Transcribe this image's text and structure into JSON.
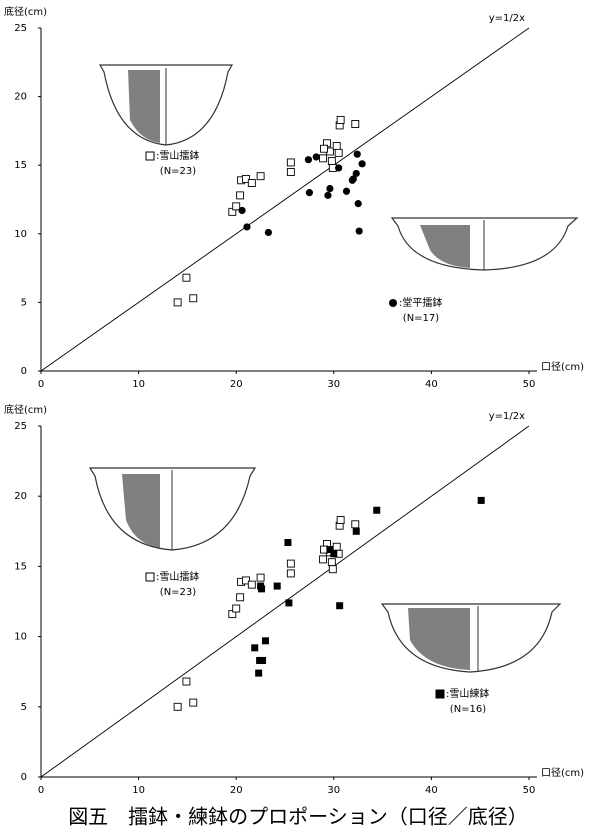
{
  "chart_data": [
    {
      "type": "scatter",
      "y_label": "底径(cm)",
      "x_label": "口径(cm)",
      "xlim": [
        0,
        50
      ],
      "ylim": [
        0,
        25
      ],
      "xticks": [
        0,
        10,
        20,
        30,
        40,
        50
      ],
      "yticks": [
        0,
        5,
        10,
        15,
        20,
        25
      ],
      "reference_line": {
        "label": "y=1/2x",
        "slope": 0.5
      },
      "series": [
        {
          "name": ":雪山擂鉢",
          "count_label": "(N=23)",
          "marker": "square-open",
          "color": "#000000",
          "x": [
            14.0,
            14.9,
            15.6,
            19.6,
            20.0,
            20.4,
            20.5,
            21.0,
            21.6,
            22.5,
            25.6,
            25.6,
            28.9,
            29.3,
            29.6,
            29.8,
            29.9,
            30.3,
            30.5,
            30.6,
            30.7,
            32.2,
            29.0
          ],
          "values": [
            5.0,
            6.8,
            5.3,
            11.6,
            12.0,
            12.8,
            13.9,
            14.0,
            13.7,
            14.2,
            15.2,
            14.5,
            15.5,
            16.6,
            16.0,
            15.3,
            14.8,
            16.4,
            15.9,
            17.9,
            18.3,
            18.0,
            16.2
          ]
        },
        {
          "name": ":堂平擂鉢",
          "count_label": "(N=17)",
          "marker": "circle",
          "color": "#000000",
          "x": [
            20.6,
            21.1,
            23.3,
            27.4,
            27.5,
            28.2,
            29.4,
            29.6,
            30.5,
            31.3,
            31.9,
            32.3,
            32.4,
            32.5,
            32.6,
            32.9,
            32.0
          ],
          "values": [
            11.7,
            10.5,
            10.1,
            15.4,
            13.0,
            15.6,
            12.8,
            13.3,
            14.8,
            13.1,
            13.9,
            14.4,
            15.8,
            12.2,
            10.2,
            15.1,
            14.0
          ]
        }
      ]
    },
    {
      "type": "scatter",
      "y_label": "底径(cm)",
      "x_label": "口径(cm)",
      "xlim": [
        0,
        50
      ],
      "ylim": [
        0,
        25
      ],
      "xticks": [
        0,
        10,
        20,
        30,
        40,
        50
      ],
      "yticks": [
        0,
        5,
        10,
        15,
        20,
        25
      ],
      "reference_line": {
        "label": "y=1/2x",
        "slope": 0.5
      },
      "series": [
        {
          "name": ":雪山擂鉢",
          "count_label": "(N=23)",
          "marker": "square-open",
          "color": "#000000",
          "x": [
            14.0,
            14.9,
            15.6,
            19.6,
            20.0,
            20.4,
            20.5,
            21.0,
            21.6,
            22.5,
            25.6,
            25.6,
            28.9,
            29.3,
            29.6,
            29.8,
            29.9,
            30.3,
            30.5,
            30.6,
            30.7,
            32.2,
            29.0
          ],
          "values": [
            5.0,
            6.8,
            5.3,
            11.6,
            12.0,
            12.8,
            13.9,
            14.0,
            13.7,
            14.2,
            15.2,
            14.5,
            15.5,
            16.6,
            16.0,
            15.3,
            14.8,
            16.4,
            15.9,
            17.9,
            18.3,
            18.0,
            16.2
          ]
        },
        {
          "name": ":雪山練鉢",
          "count_label": "(N=16)",
          "marker": "square",
          "color": "#000000",
          "x": [
            21.9,
            22.3,
            22.4,
            22.7,
            22.5,
            23.0,
            24.2,
            25.3,
            25.4,
            29.6,
            30.0,
            30.6,
            32.3,
            34.4,
            45.1,
            22.6
          ],
          "values": [
            9.2,
            7.4,
            8.3,
            8.3,
            13.6,
            9.7,
            13.6,
            16.7,
            12.4,
            16.2,
            15.9,
            12.2,
            17.5,
            19.0,
            19.7,
            13.4
          ]
        }
      ]
    }
  ],
  "caption": "図五　擂鉢・練鉢のプロポーション（口径／底径）"
}
